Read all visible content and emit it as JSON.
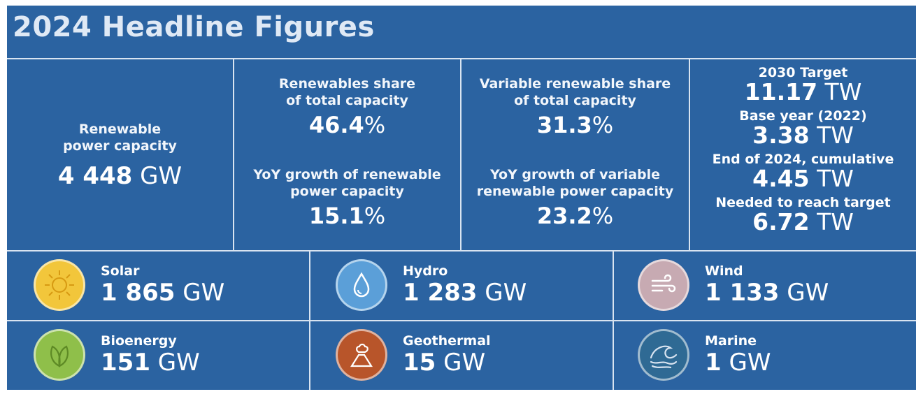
{
  "title": "2024 Headline Figures",
  "capacity": {
    "label_line1": "Renewable",
    "label_line2": "power capacity",
    "value": "4 448",
    "unit": "GW"
  },
  "share": {
    "label_line1": "Renewables share",
    "label_line2": "of total capacity",
    "value": "46.4",
    "unit": "%"
  },
  "growth": {
    "label_line1": "YoY growth of renewable",
    "label_line2": "power capacity",
    "value": "15.1",
    "unit": "%"
  },
  "var_share": {
    "label_line1": "Variable renewable share",
    "label_line2": "of total capacity",
    "value": "31.3",
    "unit": "%"
  },
  "var_growth": {
    "label_line1": "YoY growth of variable",
    "label_line2": "renewable power capacity",
    "value": "23.2",
    "unit": "%"
  },
  "targets": [
    {
      "label": "2030 Target",
      "value": "11.17",
      "unit": "TW"
    },
    {
      "label": "Base year (2022)",
      "value": "3.38",
      "unit": "TW"
    },
    {
      "label": "End of 2024, cumulative",
      "value": "4.45",
      "unit": "TW"
    },
    {
      "label": "Needed to reach target",
      "value": "6.72",
      "unit": "TW"
    }
  ],
  "sources": [
    {
      "name": "Solar",
      "value": "1 865",
      "unit": "GW",
      "icon": "sun-icon",
      "color": "#f2c63b"
    },
    {
      "name": "Hydro",
      "value": "1 283",
      "unit": "GW",
      "icon": "water-drop-icon",
      "color": "#5b9fd8"
    },
    {
      "name": "Wind",
      "value": "1 133",
      "unit": "GW",
      "icon": "wind-icon",
      "color": "#c7aab2"
    },
    {
      "name": "Bioenergy",
      "value": "151",
      "unit": "GW",
      "icon": "leaf-icon",
      "color": "#8fbf4a"
    },
    {
      "name": "Geothermal",
      "value": "15",
      "unit": "GW",
      "icon": "volcano-icon",
      "color": "#b8552a"
    },
    {
      "name": "Marine",
      "value": "1",
      "unit": "GW",
      "icon": "wave-icon",
      "color": "#2f6a94"
    }
  ]
}
